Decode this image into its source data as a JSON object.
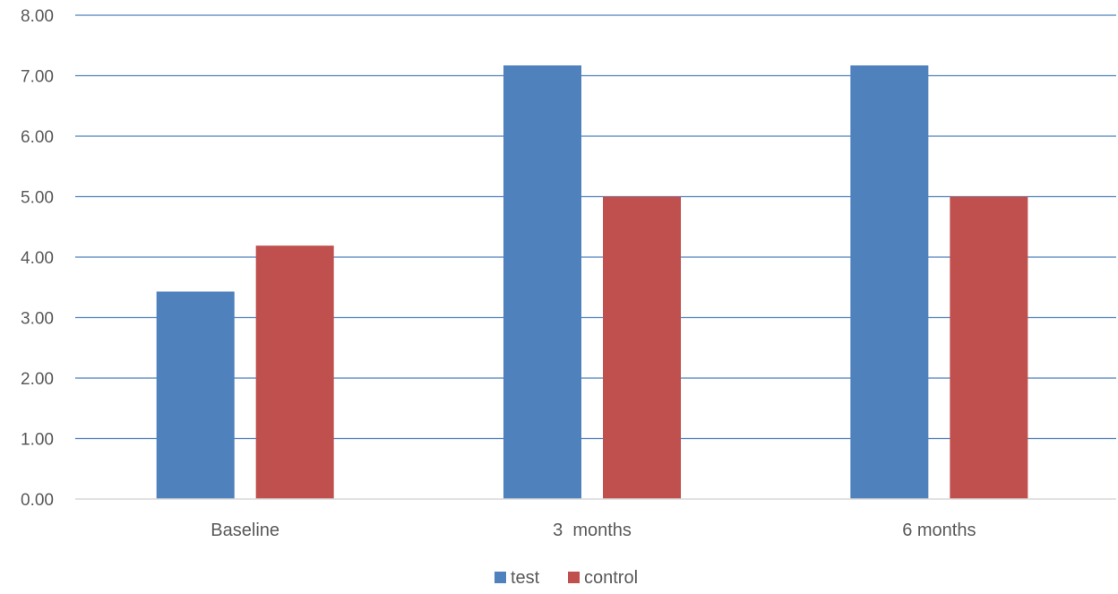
{
  "chart_data": {
    "type": "bar",
    "title": "",
    "xlabel": "",
    "ylabel": "",
    "categories": [
      "Baseline",
      "3  months",
      "6 months"
    ],
    "series": [
      {
        "name": "test",
        "color": "#4f81bd",
        "values": [
          3.43,
          7.17,
          7.17
        ]
      },
      {
        "name": "control",
        "color": "#c0504d",
        "values": [
          4.19,
          5.0,
          5.0
        ]
      }
    ],
    "ylim": [
      0,
      8
    ],
    "yticks": [
      "0.00",
      "1.00",
      "2.00",
      "3.00",
      "4.00",
      "5.00",
      "6.00",
      "7.00",
      "8.00"
    ],
    "grid": true,
    "gridline_color": "#4f81bd",
    "legend_placement": "bottom-center"
  }
}
